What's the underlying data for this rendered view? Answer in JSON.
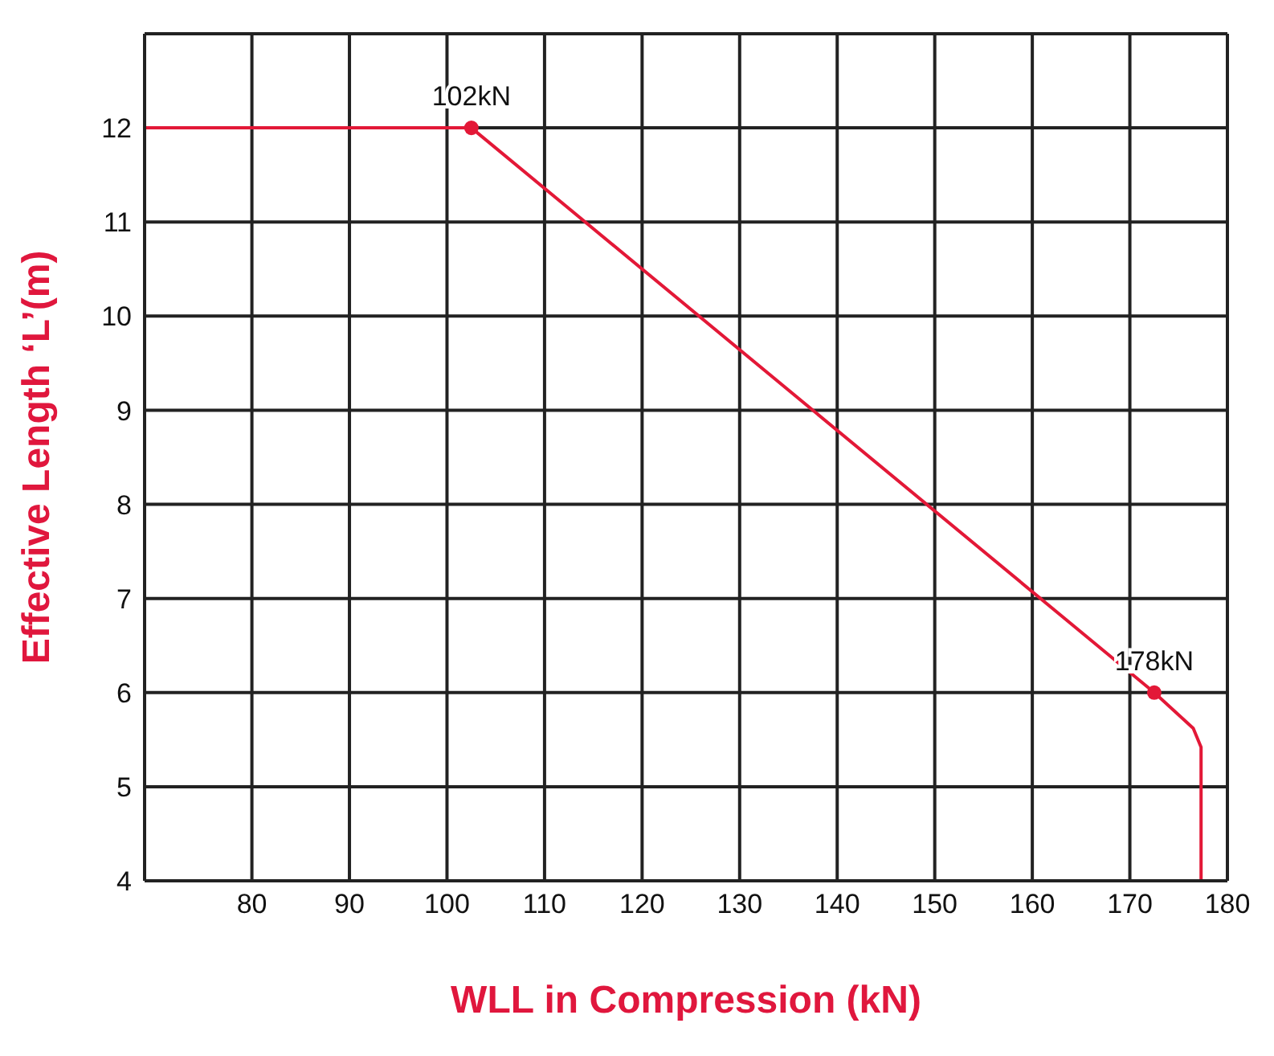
{
  "chart_data": {
    "type": "line",
    "xlabel": "WLL in Compression (kN)",
    "ylabel": "Effective Length ‘L’(m)",
    "xlim": [
      69,
      180
    ],
    "ylim": [
      4,
      13
    ],
    "xticks": [
      80,
      90,
      100,
      110,
      120,
      130,
      140,
      150,
      160,
      170,
      180
    ],
    "yticks": [
      4,
      5,
      6,
      7,
      8,
      9,
      10,
      11,
      12,
      {
        "value": 13,
        "label": null
      }
    ],
    "grid": true,
    "legend": false,
    "series": [
      {
        "color": "#e31837",
        "marker": "none",
        "x": [
          69,
          102.5,
          172.5,
          176.5,
          177.3,
          177.3
        ],
        "values": [
          12,
          12,
          6,
          5.62,
          5.42,
          4
        ]
      },
      {
        "type": "scatter",
        "color": "#e31837",
        "marker": "circle",
        "x": [
          102.5,
          172.5
        ],
        "values": [
          12,
          6
        ]
      }
    ],
    "annotations": [
      {
        "text": "102kN",
        "x": 102.5,
        "y": 12
      },
      {
        "text": "178kN",
        "x": 172.5,
        "y": 6
      }
    ]
  }
}
